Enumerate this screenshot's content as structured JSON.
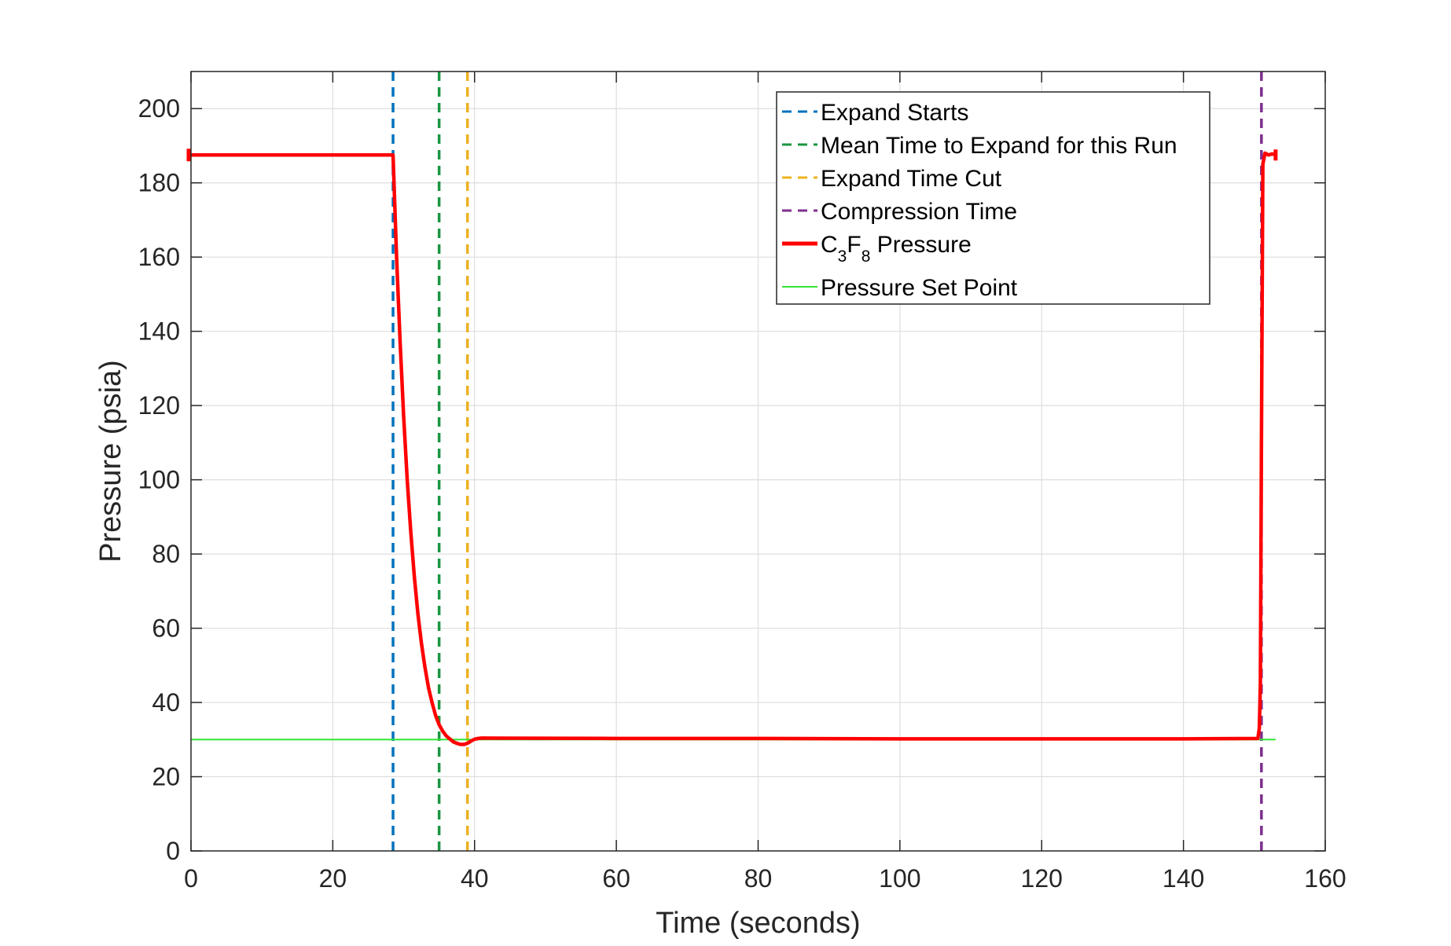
{
  "chart_data": {
    "type": "line",
    "xlabel": "Time (seconds)",
    "ylabel": "Pressure (psia)",
    "xlim": [
      0,
      160
    ],
    "ylim": [
      0,
      210
    ],
    "xticks": [
      0,
      20,
      40,
      60,
      80,
      100,
      120,
      140,
      160
    ],
    "yticks": [
      0,
      20,
      40,
      60,
      80,
      100,
      120,
      140,
      160,
      180,
      200
    ],
    "grid": true,
    "legend_position": "top-right",
    "vertical_lines": [
      {
        "name": "Expand Starts",
        "x": 28.5,
        "color": "#0072BD",
        "style": "dashed"
      },
      {
        "name": "Mean Time to Expand for this Run",
        "x": 35.0,
        "color": "#1A9641",
        "style": "dashed"
      },
      {
        "name": "Expand Time Cut",
        "x": 39.0,
        "color": "#EDB120",
        "style": "dashed"
      },
      {
        "name": "Compression Time",
        "x": 151.0,
        "color": "#7E2F8E",
        "style": "dashed"
      }
    ],
    "series": [
      {
        "name": "Pressure",
        "name_prefix": "C",
        "name_sub1": "3",
        "name_mid": "F",
        "name_sub2": "8",
        "color": "#FF0000",
        "x": [
          0,
          28.4,
          28.5,
          29,
          29.5,
          30,
          30.5,
          31,
          31.5,
          32,
          32.5,
          33,
          33.5,
          34,
          34.5,
          35,
          35.5,
          36,
          36.5,
          37,
          37.5,
          38,
          38.5,
          39,
          39.5,
          40,
          40.5,
          41,
          60,
          80,
          100,
          120,
          140,
          150.5,
          150.7,
          150.85,
          151.0,
          151.2,
          151.5,
          152,
          152.5,
          153
        ],
        "y": [
          187.5,
          187.5,
          187.5,
          160,
          137,
          117,
          100,
          86,
          74,
          64,
          56,
          49.5,
          44,
          40,
          36.5,
          34,
          32.3,
          31,
          30.2,
          29.4,
          29.0,
          28.7,
          28.7,
          29.0,
          29.6,
          30.1,
          30.3,
          30.4,
          30.3,
          30.3,
          30.2,
          30.2,
          30.2,
          30.3,
          33,
          45,
          110,
          185,
          188,
          187.5,
          187.8,
          187.5
        ]
      },
      {
        "name": "Pressure Set Point",
        "color": "#33E633",
        "x": [
          0,
          153
        ],
        "y": [
          30,
          30
        ]
      }
    ]
  }
}
